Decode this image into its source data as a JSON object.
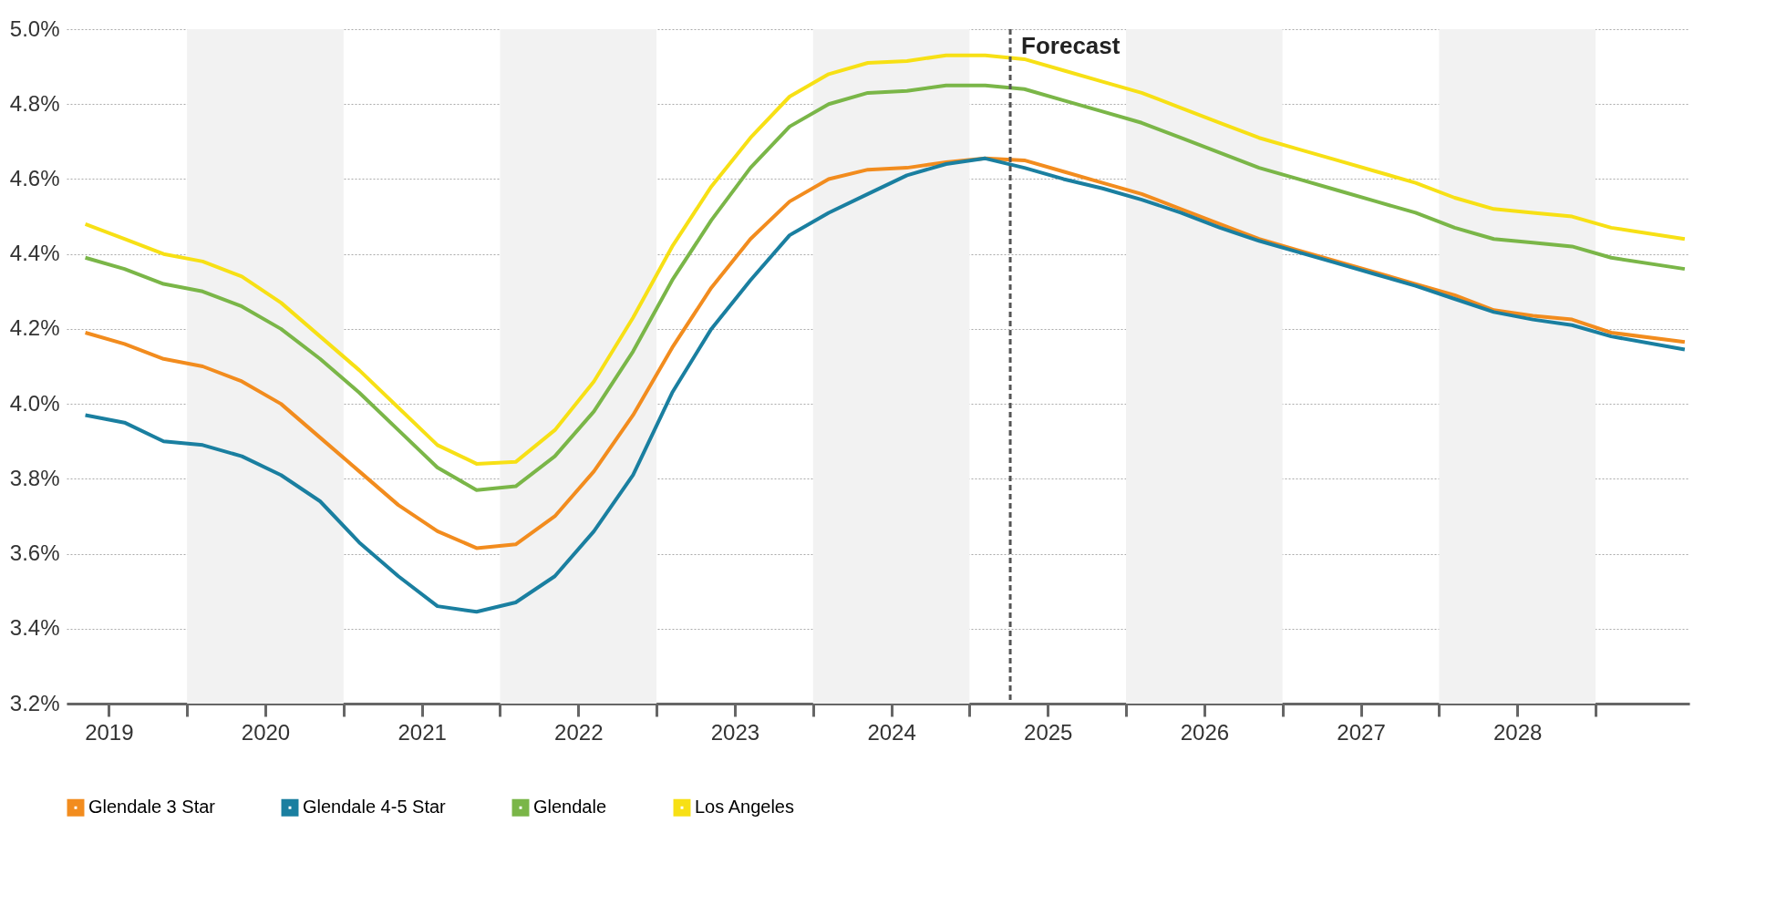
{
  "chart_data": {
    "type": "line",
    "x": [
      2019.35,
      2019.6,
      2019.85,
      2020.1,
      2020.35,
      2020.6,
      2020.85,
      2021.1,
      2021.35,
      2021.6,
      2021.85,
      2022.1,
      2022.35,
      2022.6,
      2022.85,
      2023.1,
      2023.35,
      2023.6,
      2023.85,
      2024.1,
      2024.35,
      2024.6,
      2024.85,
      2025.1,
      2025.35,
      2025.6,
      2025.85,
      2026.1,
      2026.35,
      2026.6,
      2026.85,
      2027.1,
      2027.35,
      2027.6,
      2027.85,
      2028.1,
      2028.35,
      2028.6,
      2028.85,
      2029.1,
      2029.57
    ],
    "series": [
      {
        "name": "Glendale 3 Star",
        "color": "#f28c1e",
        "values": [
          4.19,
          4.16,
          4.12,
          4.1,
          4.06,
          4.0,
          3.91,
          3.82,
          3.73,
          3.66,
          3.615,
          3.625,
          3.7,
          3.82,
          3.97,
          4.15,
          4.31,
          4.44,
          4.54,
          4.6,
          4.625,
          4.63,
          4.645,
          4.655,
          4.65,
          4.62,
          4.59,
          4.56,
          4.52,
          4.48,
          4.44,
          4.41,
          4.38,
          4.35,
          4.32,
          4.29,
          4.25,
          4.235,
          4.225,
          4.19,
          4.165
        ]
      },
      {
        "name": "Glendale 4-5 Star",
        "color": "#1a7fa0",
        "values": [
          3.97,
          3.95,
          3.9,
          3.89,
          3.86,
          3.81,
          3.74,
          3.63,
          3.54,
          3.46,
          3.445,
          3.47,
          3.54,
          3.66,
          3.81,
          4.03,
          4.2,
          4.33,
          4.45,
          4.51,
          4.56,
          4.61,
          4.64,
          4.655,
          4.63,
          4.6,
          4.575,
          4.545,
          4.51,
          4.47,
          4.435,
          4.405,
          4.375,
          4.345,
          4.315,
          4.28,
          4.245,
          4.225,
          4.21,
          4.18,
          4.145
        ]
      },
      {
        "name": "Glendale",
        "color": "#7ab648",
        "values": [
          4.39,
          4.36,
          4.32,
          4.3,
          4.26,
          4.2,
          4.12,
          4.03,
          3.93,
          3.83,
          3.77,
          3.78,
          3.86,
          3.98,
          4.14,
          4.33,
          4.49,
          4.63,
          4.74,
          4.8,
          4.83,
          4.835,
          4.85,
          4.85,
          4.84,
          4.81,
          4.78,
          4.75,
          4.71,
          4.67,
          4.63,
          4.6,
          4.57,
          4.54,
          4.51,
          4.47,
          4.44,
          4.43,
          4.42,
          4.39,
          4.36
        ]
      },
      {
        "name": "Los Angeles",
        "color": "#f7e015",
        "values": [
          4.48,
          4.44,
          4.4,
          4.38,
          4.34,
          4.27,
          4.18,
          4.09,
          3.99,
          3.89,
          3.84,
          3.845,
          3.93,
          4.06,
          4.23,
          4.42,
          4.58,
          4.71,
          4.82,
          4.88,
          4.91,
          4.915,
          4.93,
          4.93,
          4.92,
          4.89,
          4.86,
          4.83,
          4.79,
          4.75,
          4.71,
          4.68,
          4.65,
          4.62,
          4.59,
          4.55,
          4.52,
          4.51,
          4.5,
          4.47,
          4.44
        ]
      }
    ],
    "xlim": [
      2019.23,
      2029.6
    ],
    "xticks": [
      {
        "value": 2019.5,
        "label": "2019"
      },
      {
        "value": 2020,
        "label": null
      },
      {
        "value": 2020.5,
        "label": "2020"
      },
      {
        "value": 2021,
        "label": null
      },
      {
        "value": 2021.5,
        "label": "2021"
      },
      {
        "value": 2022,
        "label": null
      },
      {
        "value": 2022.5,
        "label": "2022"
      },
      {
        "value": 2023,
        "label": null
      },
      {
        "value": 2023.5,
        "label": "2023"
      },
      {
        "value": 2024,
        "label": null
      },
      {
        "value": 2024.5,
        "label": "2024"
      },
      {
        "value": 2025,
        "label": null
      },
      {
        "value": 2025.5,
        "label": "2025"
      },
      {
        "value": 2026,
        "label": null
      },
      {
        "value": 2026.5,
        "label": "2026"
      },
      {
        "value": 2027,
        "label": null
      },
      {
        "value": 2027.5,
        "label": "2027"
      },
      {
        "value": 2028,
        "label": null
      },
      {
        "value": 2028.5,
        "label": "2028"
      },
      {
        "value": 2029,
        "label": null
      }
    ],
    "ylim": [
      3.2,
      5.0
    ],
    "yticks": [
      {
        "value": 3.2,
        "label": "3.2%"
      },
      {
        "value": 3.4,
        "label": "3.4%"
      },
      {
        "value": 3.6,
        "label": "3.6%"
      },
      {
        "value": 3.8,
        "label": "3.8%"
      },
      {
        "value": 4.0,
        "label": "4.0%"
      },
      {
        "value": 4.2,
        "label": "4.2%"
      },
      {
        "value": 4.4,
        "label": "4.4%"
      },
      {
        "value": 4.6,
        "label": "4.6%"
      },
      {
        "value": 4.8,
        "label": "4.8%"
      },
      {
        "value": 5.0,
        "label": "5.0%"
      }
    ],
    "grid": "y",
    "legend": "bottom",
    "marker": "none",
    "line_style": "solid",
    "bands": [
      {
        "axis": "x",
        "from": 2020,
        "to": 2021,
        "label": null,
        "color": "#f2f2f2"
      },
      {
        "axis": "x",
        "from": 2022,
        "to": 2023,
        "label": null,
        "color": "#f2f2f2"
      },
      {
        "axis": "x",
        "from": 2024,
        "to": 2025,
        "label": null,
        "color": "#f2f2f2"
      },
      {
        "axis": "x",
        "from": 2026,
        "to": 2027,
        "label": null,
        "color": "#f2f2f2"
      },
      {
        "axis": "x",
        "from": 2028,
        "to": 2029,
        "label": null,
        "color": "#f2f2f2"
      }
    ],
    "ref_lines": [
      {
        "axis": "x",
        "value": 2025.26,
        "label": "Forecast",
        "line_style": "dashed",
        "color": "#555555"
      }
    ]
  }
}
